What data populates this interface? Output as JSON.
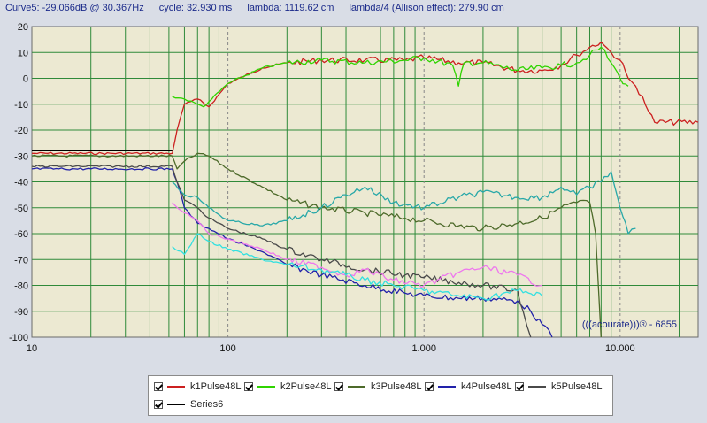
{
  "status": {
    "curve": "Curve5:  -29.066dB @ 30.367Hz",
    "cycle": "cycle: 32.930 ms",
    "lambda": "lambda: 1119.62 cm",
    "lambda4": "lambda/4 (Allison effect): 279.90 cm"
  },
  "watermark": "(((acourate)))® - 6855",
  "chart_data": {
    "type": "line",
    "x_scale": "log",
    "xlim": [
      10,
      25000
    ],
    "ylim": [
      -100,
      20
    ],
    "y_ticks": [
      20,
      10,
      0,
      -10,
      -20,
      -30,
      -40,
      -50,
      -60,
      -70,
      -80,
      -90,
      -100
    ],
    "y_tick_labels": [
      "20",
      "10",
      "0",
      "-10",
      "-20",
      "-30",
      "-40",
      "-50",
      "-60",
      "-70",
      "-80",
      "-90",
      "-100"
    ],
    "x_ticks": [
      10,
      100,
      1000,
      10000
    ],
    "x_tick_labels": [
      "10",
      "100",
      "1.000",
      "10.000"
    ],
    "grid": true,
    "legend_position": "bottom",
    "series": [
      {
        "name": "k1Pulse48L",
        "color": "#cc2020",
        "points": [
          [
            10,
            -29
          ],
          [
            52,
            -29
          ],
          [
            55,
            -20
          ],
          [
            60,
            -10
          ],
          [
            70,
            -8
          ],
          [
            80,
            -11
          ],
          [
            100,
            -2
          ],
          [
            150,
            4
          ],
          [
            200,
            6
          ],
          [
            300,
            7
          ],
          [
            500,
            7
          ],
          [
            800,
            7
          ],
          [
            1000,
            8
          ],
          [
            1500,
            6
          ],
          [
            2000,
            6
          ],
          [
            3000,
            3
          ],
          [
            4000,
            3
          ],
          [
            5000,
            5
          ],
          [
            6000,
            9
          ],
          [
            7000,
            12
          ],
          [
            8000,
            14
          ],
          [
            9000,
            10
          ],
          [
            10000,
            7
          ],
          [
            11000,
            0
          ],
          [
            12000,
            -3
          ],
          [
            13000,
            -7
          ],
          [
            14000,
            -13
          ],
          [
            15000,
            -17
          ],
          [
            25000,
            -17
          ]
        ]
      },
      {
        "name": "k2Pulse48L",
        "color": "#2fd400",
        "points": [
          [
            52,
            -7
          ],
          [
            60,
            -8
          ],
          [
            70,
            -10
          ],
          [
            75,
            -11
          ],
          [
            80,
            -9
          ],
          [
            100,
            -2
          ],
          [
            150,
            4
          ],
          [
            200,
            6
          ],
          [
            300,
            7
          ],
          [
            500,
            6
          ],
          [
            800,
            7
          ],
          [
            1000,
            8
          ],
          [
            1400,
            5
          ],
          [
            1500,
            -3
          ],
          [
            1600,
            6
          ],
          [
            2000,
            6
          ],
          [
            3000,
            3
          ],
          [
            4000,
            4
          ],
          [
            5000,
            5
          ],
          [
            6000,
            6
          ],
          [
            7000,
            9
          ],
          [
            8000,
            12
          ],
          [
            9000,
            6
          ],
          [
            10000,
            0
          ],
          [
            11000,
            -3
          ]
        ]
      },
      {
        "name": "k3Pulse48L",
        "color": "#4d6a2a",
        "points": [
          [
            10,
            -30
          ],
          [
            52,
            -30
          ],
          [
            55,
            -35
          ],
          [
            60,
            -32
          ],
          [
            70,
            -29
          ],
          [
            80,
            -30
          ],
          [
            100,
            -35
          ],
          [
            150,
            -42
          ],
          [
            200,
            -47
          ],
          [
            300,
            -50
          ],
          [
            500,
            -52
          ],
          [
            800,
            -54
          ],
          [
            1000,
            -55
          ],
          [
            1500,
            -57
          ],
          [
            2000,
            -58
          ],
          [
            3000,
            -56
          ],
          [
            4000,
            -54
          ],
          [
            5000,
            -50
          ],
          [
            6000,
            -48
          ],
          [
            7000,
            -48
          ],
          [
            7500,
            -60
          ],
          [
            8000,
            -100
          ]
        ]
      },
      {
        "name": "k4Pulse48L",
        "color": "#2222aa",
        "points": [
          [
            10,
            -35
          ],
          [
            52,
            -35
          ],
          [
            55,
            -40
          ],
          [
            60,
            -50
          ],
          [
            70,
            -56
          ],
          [
            80,
            -58
          ],
          [
            100,
            -62
          ],
          [
            150,
            -67
          ],
          [
            200,
            -72
          ],
          [
            300,
            -76
          ],
          [
            500,
            -80
          ],
          [
            800,
            -83
          ],
          [
            1000,
            -84
          ],
          [
            1500,
            -85
          ],
          [
            2000,
            -85
          ],
          [
            3000,
            -86
          ],
          [
            3500,
            -90
          ],
          [
            4000,
            -95
          ],
          [
            4500,
            -100
          ]
        ]
      },
      {
        "name": "k5Pulse48L",
        "color": "#4a4a4a",
        "points": [
          [
            10,
            -34
          ],
          [
            52,
            -34
          ],
          [
            55,
            -40
          ],
          [
            60,
            -47
          ],
          [
            70,
            -50
          ],
          [
            80,
            -54
          ],
          [
            100,
            -58
          ],
          [
            150,
            -62
          ],
          [
            200,
            -66
          ],
          [
            300,
            -70
          ],
          [
            500,
            -74
          ],
          [
            800,
            -76
          ],
          [
            1000,
            -77
          ],
          [
            2000,
            -80
          ],
          [
            3000,
            -82
          ],
          [
            3200,
            -90
          ],
          [
            3500,
            -100
          ]
        ]
      },
      {
        "name": "Series6",
        "color": "#000000",
        "points": [
          [
            10,
            -28
          ],
          [
            52,
            -28
          ]
        ]
      },
      {
        "name": "",
        "color": "#28a8a8",
        "points": [
          [
            52,
            -40
          ],
          [
            60,
            -45
          ],
          [
            70,
            -46
          ],
          [
            80,
            -50
          ],
          [
            100,
            -55
          ],
          [
            150,
            -57
          ],
          [
            200,
            -55
          ],
          [
            300,
            -50
          ],
          [
            400,
            -45
          ],
          [
            500,
            -42
          ],
          [
            700,
            -48
          ],
          [
            1000,
            -50
          ],
          [
            1500,
            -46
          ],
          [
            2000,
            -44
          ],
          [
            3000,
            -46
          ],
          [
            4000,
            -46
          ],
          [
            5000,
            -42
          ],
          [
            6000,
            -45
          ],
          [
            7000,
            -42
          ],
          [
            8000,
            -40
          ],
          [
            9000,
            -36
          ],
          [
            10000,
            -50
          ],
          [
            11000,
            -60
          ],
          [
            12000,
            -58
          ]
        ]
      },
      {
        "name": "",
        "color": "#ee77ee",
        "points": [
          [
            52,
            -48
          ],
          [
            60,
            -52
          ],
          [
            70,
            -55
          ],
          [
            80,
            -60
          ],
          [
            100,
            -62
          ],
          [
            150,
            -66
          ],
          [
            200,
            -70
          ],
          [
            300,
            -73
          ],
          [
            400,
            -76
          ],
          [
            500,
            -74
          ],
          [
            700,
            -78
          ],
          [
            1000,
            -80
          ],
          [
            1500,
            -75
          ],
          [
            2000,
            -73
          ],
          [
            3000,
            -76
          ],
          [
            4000,
            -80
          ]
        ]
      },
      {
        "name": "",
        "color": "#33e0e0",
        "points": [
          [
            52,
            -65
          ],
          [
            60,
            -68
          ],
          [
            70,
            -60
          ],
          [
            80,
            -63
          ],
          [
            100,
            -66
          ],
          [
            150,
            -70
          ],
          [
            200,
            -72
          ],
          [
            300,
            -74
          ],
          [
            400,
            -76
          ],
          [
            500,
            -78
          ],
          [
            700,
            -80
          ],
          [
            1000,
            -82
          ],
          [
            1500,
            -84
          ],
          [
            2000,
            -85
          ],
          [
            3000,
            -82
          ],
          [
            4000,
            -84
          ]
        ]
      }
    ]
  },
  "legend": {
    "items": [
      {
        "label": "k1Pulse48L",
        "color": "#cc2020"
      },
      {
        "label": "k2Pulse48L",
        "color": "#2fd400"
      },
      {
        "label": "k3Pulse48L",
        "color": "#4d6a2a"
      },
      {
        "label": "k4Pulse48L",
        "color": "#2222aa"
      },
      {
        "label": "k5Pulse48L",
        "color": "#4a4a4a"
      },
      {
        "label": "Series6",
        "color": "#000000"
      }
    ]
  }
}
